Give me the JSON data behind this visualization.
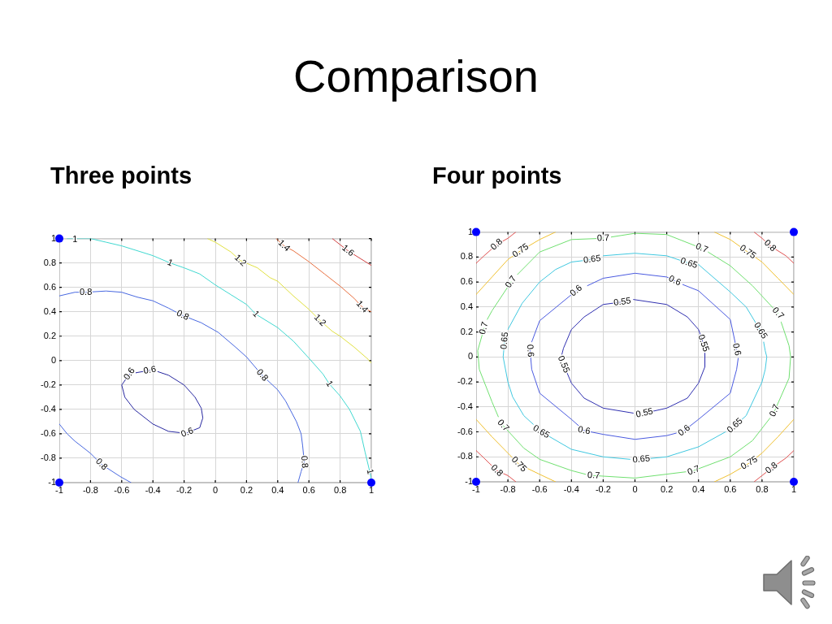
{
  "chart_data": [
    {
      "type": "other",
      "title": "Comparison"
    },
    {
      "type": "line",
      "title": "Three points",
      "xlim": [
        -1,
        1
      ],
      "ylim": [
        -1,
        1
      ],
      "xticks": [
        -1,
        -0.8,
        -0.6,
        -0.4,
        -0.2,
        0,
        0.2,
        0.4,
        0.6,
        0.8,
        1
      ],
      "yticks": [
        -1,
        -0.8,
        -0.6,
        -0.4,
        -0.2,
        0,
        0.2,
        0.4,
        0.6,
        0.8,
        1
      ],
      "grid": true,
      "series": [
        {
          "type": "line",
          "color": "#2828a0",
          "x": [
            -0.37,
            -0.3,
            -0.2,
            -0.13,
            -0.09,
            -0.08,
            -0.1,
            -0.18
          ],
          "values": [
            -0.09,
            -0.12,
            -0.2,
            -0.3,
            -0.39,
            -0.47,
            -0.55,
            -0.59
          ]
        },
        {
          "type": "line",
          "color": "#2828a0",
          "x": [
            -0.23,
            -0.3,
            -0.4,
            -0.52,
            -0.58,
            -0.6,
            -0.55
          ],
          "values": [
            -0.59,
            -0.58,
            -0.52,
            -0.4,
            -0.3,
            -0.2,
            -0.11
          ]
        },
        {
          "type": "line",
          "color": "#2828a0",
          "x": [
            -0.51,
            -0.42
          ],
          "values": [
            -0.1,
            -0.08
          ]
        },
        {
          "type": "line",
          "color": "#4868e0",
          "x": [
            -1,
            -0.9,
            -0.83,
            -0.7,
            -0.6,
            -0.5,
            -0.4,
            -0.3,
            -0.21,
            -0.09,
            0.02,
            0.13,
            0.2,
            0.3,
            0.4,
            0.45,
            0.52,
            0.55,
            0.56,
            0.57,
            0.55,
            0.53
          ],
          "values": [
            0.53,
            0.56,
            0.56,
            0.57,
            0.56,
            0.52,
            0.49,
            0.43,
            0.37,
            0.31,
            0.23,
            0.11,
            0.03,
            -0.12,
            -0.24,
            -0.33,
            -0.5,
            -0.6,
            -0.7,
            -0.83,
            -0.91,
            -1
          ]
        },
        {
          "type": "line",
          "color": "#4868e0",
          "x": [
            -1,
            -0.95,
            -0.9,
            -0.8,
            -0.73,
            -0.61,
            -0.54
          ],
          "values": [
            -0.52,
            -0.6,
            -0.66,
            -0.76,
            -0.85,
            -0.95,
            -1
          ]
        },
        {
          "type": "line",
          "color": "#40d8d0",
          "x": [
            -0.95,
            -0.8,
            -0.7,
            -0.6,
            -0.5,
            -0.4,
            -0.29,
            -0.2,
            -0.1,
            0,
            0.1,
            0.2,
            0.26,
            0.4,
            0.5,
            0.6,
            0.69,
            0.73,
            0.8,
            0.86,
            0.93,
            0.96,
            0.99,
            1
          ],
          "values": [
            1,
            1,
            0.97,
            0.94,
            0.9,
            0.86,
            0.8,
            0.76,
            0.71,
            0.62,
            0.54,
            0.46,
            0.38,
            0.27,
            0.16,
            0.02,
            -0.11,
            -0.19,
            -0.29,
            -0.4,
            -0.58,
            -0.75,
            -0.91,
            -0.97
          ]
        },
        {
          "type": "line",
          "color": "#e0e040",
          "x": [
            -0.05,
            0,
            0.1,
            0.16,
            0.27,
            0.35,
            0.4,
            0.5,
            0.6,
            0.67,
            0.75,
            0.8,
            0.89,
            0.98,
            1
          ],
          "values": [
            1,
            0.97,
            0.89,
            0.82,
            0.76,
            0.68,
            0.65,
            0.53,
            0.42,
            0.33,
            0.24,
            0.2,
            0.11,
            0.01,
            -0.02
          ]
        },
        {
          "type": "line",
          "color": "#e87040",
          "x": [
            0.39,
            0.44,
            0.5,
            0.6,
            0.7,
            0.8,
            0.89,
            0.94,
            1
          ],
          "values": [
            1,
            0.94,
            0.9,
            0.81,
            0.71,
            0.61,
            0.51,
            0.44,
            0.4
          ]
        },
        {
          "type": "line",
          "color": "#d04040",
          "x": [
            0.75,
            0.85,
            1
          ],
          "values": [
            1,
            0.9,
            0.78
          ]
        },
        {
          "type": "scatter",
          "color": "#0000ff",
          "x": [
            -1,
            -1,
            1
          ],
          "values": [
            1,
            -1,
            -1
          ]
        }
      ],
      "annotations": [
        {
          "text": "1",
          "x": -0.9,
          "y": 0.99
        },
        {
          "text": "1",
          "x": -0.29,
          "y": 0.8
        },
        {
          "text": "1",
          "x": 0.26,
          "y": 0.38
        },
        {
          "text": "1",
          "x": 0.73,
          "y": -0.19
        },
        {
          "text": "1",
          "x": 0.99,
          "y": -0.91
        },
        {
          "text": "0.8",
          "x": -0.83,
          "y": 0.56
        },
        {
          "text": "0.8",
          "x": -0.21,
          "y": 0.37
        },
        {
          "text": "0.8",
          "x": 0.3,
          "y": -0.12
        },
        {
          "text": "0.8",
          "x": 0.57,
          "y": -0.83
        },
        {
          "text": "0.8",
          "x": -0.73,
          "y": -0.85
        },
        {
          "text": "0.6",
          "x": -0.55,
          "y": -0.11
        },
        {
          "text": "0.6",
          "x": -0.42,
          "y": -0.08
        },
        {
          "text": "0.6",
          "x": -0.18,
          "y": -0.59
        },
        {
          "text": "1.2",
          "x": 0.16,
          "y": 0.82
        },
        {
          "text": "1.2",
          "x": 0.67,
          "y": 0.33
        },
        {
          "text": "1.4",
          "x": 0.44,
          "y": 0.94
        },
        {
          "text": "1.4",
          "x": 0.94,
          "y": 0.44
        },
        {
          "text": "1.6",
          "x": 0.85,
          "y": 0.9
        }
      ]
    },
    {
      "type": "line",
      "title": "Four points",
      "xlim": [
        -1,
        1
      ],
      "ylim": [
        -1,
        1
      ],
      "xticks": [
        -1,
        -0.8,
        -0.6,
        -0.4,
        -0.2,
        0,
        0.2,
        0.4,
        0.6,
        0.8,
        1
      ],
      "yticks": [
        -1,
        -0.8,
        -0.6,
        -0.4,
        -0.2,
        0,
        0.2,
        0.4,
        0.6,
        0.8,
        1
      ],
      "grid": true,
      "series": [
        {
          "type": "line",
          "color": "#3030b0",
          "x": [
            -0.01,
            0.2,
            0.33,
            0.4,
            0.43
          ],
          "values": [
            0.46,
            0.42,
            0.32,
            0.22,
            0.11
          ]
        },
        {
          "type": "line",
          "color": "#3030b0",
          "x": [
            0.44,
            0.44,
            0.4,
            0.33,
            0.2,
            0.06
          ],
          "values": [
            0.03,
            -0.08,
            -0.21,
            -0.33,
            -0.41,
            -0.45
          ]
        },
        {
          "type": "line",
          "color": "#3030b0",
          "x": [
            -0.01,
            -0.2,
            -0.32,
            -0.4,
            -0.45
          ],
          "values": [
            -0.45,
            -0.41,
            -0.33,
            -0.21,
            -0.06
          ]
        },
        {
          "type": "line",
          "color": "#3030b0",
          "x": [
            -0.46,
            -0.45,
            -0.4,
            -0.32,
            -0.2,
            -0.08
          ],
          "values": [
            0.02,
            0.07,
            0.22,
            0.32,
            0.42,
            0.44
          ]
        },
        {
          "type": "line",
          "color": "#4a5ae0",
          "x": [
            -0.3,
            -0.2,
            0,
            0.2,
            0.25
          ],
          "values": [
            0.57,
            0.63,
            0.67,
            0.64,
            0.61
          ]
        },
        {
          "type": "line",
          "color": "#4a5ae0",
          "x": [
            0.3,
            0.4,
            0.6,
            0.64
          ],
          "values": [
            0.58,
            0.53,
            0.3,
            0.06
          ]
        },
        {
          "type": "line",
          "color": "#4a5ae0",
          "x": [
            0.65,
            0.64,
            0.6,
            0.4,
            0.31
          ],
          "values": [
            -0.01,
            -0.1,
            -0.29,
            -0.5,
            -0.59
          ]
        },
        {
          "type": "line",
          "color": "#4a5ae0",
          "x": [
            0.26,
            0.2,
            0,
            -0.2,
            -0.32,
            -0.4,
            -0.6,
            -0.65,
            -0.66
          ],
          "values": [
            -0.61,
            -0.63,
            -0.66,
            -0.62,
            -0.59,
            -0.5,
            -0.29,
            -0.1,
            0.05
          ]
        },
        {
          "type": "line",
          "color": "#4a5ae0",
          "x": [
            -0.65,
            -0.6,
            -0.37
          ],
          "values": [
            0.12,
            0.29,
            0.53
          ]
        },
        {
          "type": "line",
          "color": "#40c8e0",
          "x": [
            -0.2,
            0,
            0.2,
            0.34
          ],
          "values": [
            0.81,
            0.83,
            0.81,
            0.75
          ]
        },
        {
          "type": "line",
          "color": "#40c8e0",
          "x": [
            0.4,
            0.6,
            0.7,
            0.79
          ],
          "values": [
            0.74,
            0.52,
            0.4,
            0.21
          ]
        },
        {
          "type": "line",
          "color": "#40c8e0",
          "x": [
            0.81,
            0.82,
            0.83,
            0.82,
            0.8,
            0.7,
            0.63
          ],
          "values": [
            0.12,
            0.05,
            0,
            -0.1,
            -0.2,
            -0.47,
            -0.55
          ]
        },
        {
          "type": "line",
          "color": "#40c8e0",
          "x": [
            0.57,
            0.4,
            0.2,
            0.04
          ],
          "values": [
            -0.6,
            -0.72,
            -0.8,
            -0.82
          ]
        },
        {
          "type": "line",
          "color": "#40c8e0",
          "x": [
            -0.03,
            -0.2,
            -0.4,
            -0.59
          ],
          "values": [
            -0.82,
            -0.8,
            -0.74,
            -0.6
          ]
        },
        {
          "type": "line",
          "color": "#40c8e0",
          "x": [
            -0.64,
            -0.7,
            -0.77,
            -0.8,
            -0.83,
            -0.82
          ],
          "values": [
            -0.54,
            -0.47,
            -0.32,
            -0.2,
            0,
            0.13
          ]
        },
        {
          "type": "line",
          "color": "#40c8e0",
          "x": [
            -0.8,
            -0.71,
            -0.6,
            -0.5,
            -0.4,
            -0.27
          ],
          "values": [
            0.22,
            0.43,
            0.6,
            0.7,
            0.76,
            0.78
          ]
        },
        {
          "type": "line",
          "color": "#70e070",
          "x": [
            -0.15,
            0,
            0.2,
            0.42
          ],
          "values": [
            0.96,
            0.99,
            0.98,
            0.87
          ]
        },
        {
          "type": "line",
          "color": "#70e070",
          "x": [
            0.46,
            0.6,
            0.74,
            0.9
          ],
          "values": [
            0.84,
            0.73,
            0.57,
            0.35
          ]
        },
        {
          "type": "line",
          "color": "#70e070",
          "x": [
            0.92,
            0.97,
            0.98,
            0.97,
            0.88
          ],
          "values": [
            0.28,
            0.09,
            0,
            -0.17,
            -0.43
          ]
        },
        {
          "type": "line",
          "color": "#70e070",
          "x": [
            0.85,
            0.74,
            0.6,
            0.37
          ],
          "values": [
            -0.49,
            -0.67,
            -0.8,
            -0.91
          ]
        },
        {
          "type": "line",
          "color": "#70e070",
          "x": [
            0.32,
            0,
            -0.26
          ],
          "values": [
            -0.92,
            -0.97,
            -0.95
          ]
        },
        {
          "type": "line",
          "color": "#70e070",
          "x": [
            -0.31,
            -0.4,
            -0.6,
            -0.7,
            -0.83
          ],
          "values": [
            -0.94,
            -0.91,
            -0.82,
            -0.73,
            -0.55
          ]
        },
        {
          "type": "line",
          "color": "#70e070",
          "x": [
            -0.86,
            -0.9,
            -0.98,
            -0.99,
            -0.95
          ],
          "values": [
            -0.48,
            -0.36,
            -0.1,
            0.05,
            0.23
          ]
        },
        {
          "type": "line",
          "color": "#70e070",
          "x": [
            -0.93,
            -0.9,
            -0.78
          ],
          "values": [
            0.3,
            0.37,
            0.6
          ]
        },
        {
          "type": "line",
          "color": "#70e070",
          "x": [
            -0.74,
            -0.6,
            -0.4,
            -0.2
          ],
          "values": [
            0.66,
            0.84,
            0.94,
            0.95
          ]
        },
        {
          "type": "line",
          "color": "#f0c030",
          "x": [
            -1,
            -0.9,
            -0.8,
            -0.72,
            -0.6,
            -0.5
          ],
          "values": [
            0.5,
            0.64,
            0.78,
            0.85,
            0.94,
            1
          ]
        },
        {
          "type": "line",
          "color": "#f0c030",
          "x": [
            0.5,
            0.6,
            0.71,
            0.8,
            0.9,
            1
          ],
          "values": [
            1,
            0.94,
            0.84,
            0.76,
            0.63,
            0.5
          ]
        },
        {
          "type": "line",
          "color": "#f0c030",
          "x": [
            -1,
            -0.9,
            -0.8,
            -0.73,
            -0.6,
            -0.5
          ],
          "values": [
            -0.5,
            -0.64,
            -0.77,
            -0.86,
            -0.94,
            -1
          ]
        },
        {
          "type": "line",
          "color": "#f0c030",
          "x": [
            0.5,
            0.6,
            0.72,
            0.8,
            0.9,
            1
          ],
          "values": [
            -1,
            -0.94,
            -0.85,
            -0.77,
            -0.64,
            -0.5
          ]
        },
        {
          "type": "line",
          "color": "#e05050",
          "x": [
            -1,
            -0.95,
            -0.87,
            -0.8,
            -0.75
          ],
          "values": [
            0.75,
            0.81,
            0.9,
            0.95,
            1
          ]
        },
        {
          "type": "line",
          "color": "#e05050",
          "x": [
            0.75,
            0.8,
            0.85,
            0.95,
            1
          ],
          "values": [
            1,
            0.95,
            0.89,
            0.81,
            0.75
          ]
        },
        {
          "type": "line",
          "color": "#e05050",
          "x": [
            -1,
            -0.95,
            -0.87,
            -0.8,
            -0.75
          ],
          "values": [
            -0.75,
            -0.81,
            -0.91,
            -0.95,
            -1
          ]
        },
        {
          "type": "line",
          "color": "#e05050",
          "x": [
            0.75,
            0.8,
            0.86,
            0.95,
            1
          ],
          "values": [
            -1,
            -0.95,
            -0.89,
            -0.81,
            -0.75
          ]
        },
        {
          "type": "scatter",
          "color": "#0000ff",
          "x": [
            -1,
            1,
            -1,
            1
          ],
          "values": [
            1,
            1,
            -1,
            -1
          ]
        }
      ],
      "annotations": [
        {
          "text": "0.8",
          "x": -0.87,
          "y": 0.9
        },
        {
          "text": "0.75",
          "x": -0.72,
          "y": 0.85
        },
        {
          "text": "0.7",
          "x": -0.2,
          "y": 0.95
        },
        {
          "text": "0.65",
          "x": -0.27,
          "y": 0.78
        },
        {
          "text": "0.6",
          "x": -0.37,
          "y": 0.53
        },
        {
          "text": "0.55",
          "x": -0.08,
          "y": 0.44
        },
        {
          "text": "0.7",
          "x": 0.42,
          "y": 0.87
        },
        {
          "text": "0.75",
          "x": 0.71,
          "y": 0.84
        },
        {
          "text": "0.8",
          "x": 0.85,
          "y": 0.89
        },
        {
          "text": "0.65",
          "x": 0.34,
          "y": 0.75
        },
        {
          "text": "0.6",
          "x": 0.25,
          "y": 0.61
        },
        {
          "text": "0.7",
          "x": -0.78,
          "y": 0.6
        },
        {
          "text": "0.7",
          "x": -0.95,
          "y": 0.23
        },
        {
          "text": "0.65",
          "x": -0.82,
          "y": 0.13
        },
        {
          "text": "0.6",
          "x": -0.66,
          "y": 0.05
        },
        {
          "text": "0.55",
          "x": -0.45,
          "y": -0.06
        },
        {
          "text": "0.55",
          "x": 0.43,
          "y": 0.11
        },
        {
          "text": "0.6",
          "x": 0.64,
          "y": 0.06
        },
        {
          "text": "0.65",
          "x": 0.79,
          "y": 0.21
        },
        {
          "text": "0.7",
          "x": 0.9,
          "y": 0.35
        },
        {
          "text": "0.55",
          "x": 0.06,
          "y": -0.45
        },
        {
          "text": "0.7",
          "x": -0.83,
          "y": -0.55
        },
        {
          "text": "0.65",
          "x": -0.59,
          "y": -0.6
        },
        {
          "text": "0.6",
          "x": -0.32,
          "y": -0.59
        },
        {
          "text": "0.6",
          "x": 0.31,
          "y": -0.59
        },
        {
          "text": "0.65",
          "x": 0.63,
          "y": -0.55
        },
        {
          "text": "0.7",
          "x": 0.88,
          "y": -0.43
        },
        {
          "text": "0.75",
          "x": -0.73,
          "y": -0.86
        },
        {
          "text": "0.8",
          "x": -0.87,
          "y": -0.91
        },
        {
          "text": "0.7",
          "x": -0.26,
          "y": -0.95
        },
        {
          "text": "0.65",
          "x": 0.04,
          "y": -0.82
        },
        {
          "text": "0.7",
          "x": 0.37,
          "y": -0.91
        },
        {
          "text": "0.75",
          "x": 0.72,
          "y": -0.85
        },
        {
          "text": "0.8",
          "x": 0.86,
          "y": -0.89
        }
      ]
    }
  ]
}
